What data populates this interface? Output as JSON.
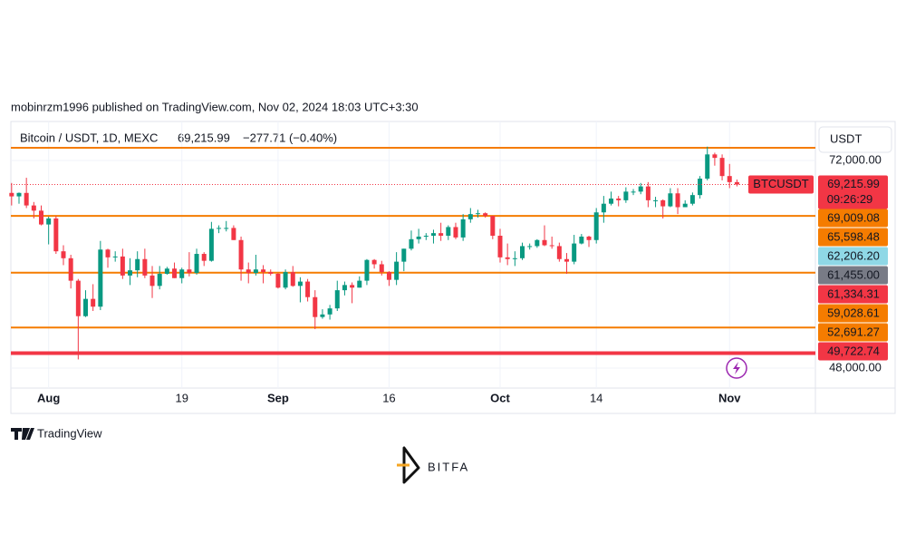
{
  "header": {
    "publisher": "mobinrzm1996 published on TradingView.com, Nov 02, 2024 18:03 UTC+3:30"
  },
  "chart_data": {
    "type": "candlestick",
    "title": "Bitcoin / USDT, 1D, MEXC",
    "last_price": {
      "value": 69215.99,
      "label": "69,215.99"
    },
    "change": "−277.71 (−0.40%)",
    "currency": "USDT",
    "symbol": "BTCUSDT",
    "countdown": "09:26:29",
    "up_color": "#089981",
    "down_color": "#f23645",
    "xlim": [
      208.9,
      317.6
    ],
    "xticks": [
      {
        "value": 214,
        "label": "Aug"
      },
      {
        "value": 232,
        "label": "19"
      },
      {
        "value": 245,
        "label": "Sep"
      },
      {
        "value": 260,
        "label": "16"
      },
      {
        "value": 275,
        "label": "Oct"
      },
      {
        "value": 288,
        "label": "14"
      },
      {
        "value": 306,
        "label": "Nov"
      }
    ],
    "ylim": [
      45690,
      76507
    ],
    "yticks": [
      {
        "value": 72000,
        "label": "72,000.00"
      },
      {
        "value": 48000,
        "label": "48,000.00"
      }
    ],
    "x": [
      209,
      210,
      211,
      212,
      213,
      214,
      215,
      216,
      217,
      218,
      219,
      220,
      221,
      222,
      223,
      224,
      225,
      226,
      227,
      228,
      229,
      230,
      231,
      232,
      233,
      234,
      235,
      236,
      237,
      238,
      239,
      240,
      241,
      242,
      243,
      244,
      245,
      246,
      247,
      248,
      249,
      250,
      251,
      252,
      253,
      254,
      255,
      256,
      257,
      258,
      259,
      260,
      261,
      262,
      263,
      264,
      265,
      266,
      267,
      268,
      269,
      270,
      271,
      272,
      273,
      274,
      275,
      276,
      277,
      278,
      279,
      280,
      281,
      282,
      283,
      284,
      285,
      286,
      287,
      288,
      289,
      290,
      291,
      292,
      293,
      294,
      295,
      296,
      297,
      298,
      299,
      300,
      301,
      302,
      303,
      304,
      305,
      306,
      307
    ],
    "open": [
      68250,
      67850,
      68250,
      66800,
      66200,
      64600,
      65300,
      61500,
      60700,
      58100,
      54000,
      56000,
      55100,
      61700,
      60800,
      60900,
      58700,
      59300,
      60600,
      58700,
      57500,
      58900,
      59500,
      58400,
      59400,
      59000,
      61200,
      60400,
      64100,
      64200,
      64200,
      62800,
      59400,
      59000,
      59400,
      59100,
      58900,
      57300,
      59100,
      57500,
      58000,
      56200,
      53900,
      54200,
      54900,
      57000,
      57600,
      57300,
      58100,
      60500,
      60000,
      59100,
      58200,
      60300,
      61800,
      62900,
      63200,
      63300,
      63600,
      63300,
      64300,
      63100,
      65200,
      65800,
      65900,
      65600,
      63300,
      60800,
      60600,
      60700,
      62100,
      62100,
      62800,
      62200,
      62100,
      60600,
      60300,
      62400,
      63200,
      62800,
      66000,
      67000,
      67600,
      67400,
      68400,
      68400,
      69000,
      67400,
      67400,
      66700,
      68200,
      66600,
      67000,
      68000,
      69900,
      72700,
      72300,
      70200,
      69500
    ],
    "high": [
      69400,
      68300,
      70000,
      67200,
      66800,
      65500,
      65600,
      62200,
      61100,
      58300,
      57000,
      57700,
      62700,
      61800,
      61500,
      61800,
      60700,
      61500,
      61800,
      59800,
      59800,
      59700,
      60200,
      59600,
      61400,
      61800,
      61400,
      64900,
      64500,
      65000,
      64500,
      63200,
      60200,
      61100,
      59900,
      59400,
      59000,
      59400,
      59800,
      58500,
      58300,
      57000,
      54800,
      55300,
      58100,
      58000,
      57900,
      58600,
      60600,
      60600,
      60400,
      59200,
      61400,
      61800,
      63900,
      64100,
      63600,
      64000,
      64800,
      64500,
      64800,
      65800,
      66500,
      66300,
      66000,
      65600,
      64100,
      62400,
      61500,
      62500,
      62400,
      62900,
      64500,
      63200,
      62500,
      61300,
      63400,
      63500,
      63300,
      66500,
      67900,
      68400,
      67900,
      68900,
      68700,
      69400,
      69500,
      67800,
      67500,
      68800,
      68800,
      67400,
      68300,
      70200,
      73600,
      72900,
      72700,
      71600,
      69800
    ],
    "low": [
      66800,
      67000,
      66500,
      65300,
      64500,
      62300,
      61200,
      59900,
      57200,
      49000,
      53900,
      54600,
      54700,
      59600,
      60300,
      58300,
      57600,
      58500,
      58400,
      56100,
      57100,
      58800,
      58400,
      57800,
      58600,
      58800,
      59800,
      60300,
      63600,
      63800,
      62800,
      58100,
      57800,
      58700,
      57800,
      58700,
      57200,
      57100,
      57400,
      55600,
      55700,
      52500,
      53700,
      53600,
      54600,
      56400,
      55500,
      57300,
      57600,
      59500,
      58700,
      57500,
      57600,
      59200,
      61600,
      62400,
      62800,
      62400,
      62700,
      62800,
      62900,
      62700,
      64800,
      65400,
      65400,
      62900,
      60200,
      59900,
      59800,
      60500,
      61700,
      61900,
      62100,
      61800,
      60300,
      58900,
      60000,
      62300,
      62000,
      62400,
      64800,
      66800,
      66700,
      67100,
      68000,
      68100,
      66600,
      66600,
      65300,
      66600,
      65800,
      66600,
      66800,
      67600,
      69700,
      71400,
      69700,
      68800,
      69000
    ],
    "close": [
      67850,
      68250,
      66800,
      66200,
      64600,
      65300,
      61500,
      60700,
      58100,
      54000,
      56000,
      55100,
      61700,
      60800,
      60900,
      58700,
      59300,
      60600,
      58700,
      57500,
      58900,
      59500,
      58400,
      59400,
      59000,
      61200,
      60400,
      64100,
      64200,
      64200,
      62800,
      59400,
      59000,
      59400,
      59100,
      58900,
      57300,
      59100,
      57500,
      58000,
      56200,
      53900,
      54200,
      54900,
      57000,
      57600,
      57300,
      58100,
      60500,
      60000,
      59100,
      58200,
      60300,
      61800,
      62900,
      63200,
      63300,
      63600,
      63300,
      64300,
      63100,
      65200,
      65800,
      65900,
      65600,
      63300,
      60800,
      60600,
      60700,
      62100,
      62100,
      62800,
      62200,
      62100,
      60600,
      60300,
      62400,
      63200,
      62800,
      66000,
      67000,
      67600,
      67400,
      68400,
      68400,
      69000,
      67400,
      67400,
      66700,
      68200,
      66600,
      67000,
      68000,
      69900,
      72700,
      72300,
      70200,
      69500,
      69215.99
    ],
    "levels": [
      {
        "value": 73470,
        "color": "#f57c00"
      },
      {
        "value": 65598.48,
        "color": "#f57c00"
      },
      {
        "value": 59028.61,
        "color": "#f57c00"
      },
      {
        "value": 52691.27,
        "color": "#f57c00"
      },
      {
        "value": 49722.74,
        "color": "#f23645"
      }
    ],
    "price_labels": [
      {
        "value": 69009.08,
        "label": "69,009.08",
        "color": "#f57c00"
      },
      {
        "value": 65598.48,
        "label": "65,598.48",
        "color": "#f57c00"
      },
      {
        "value": 62206.2,
        "label": "62,206.20",
        "color": "#8fd8e6"
      },
      {
        "value": 61455.0,
        "label": "61,455.00",
        "color": "#787b86"
      },
      {
        "value": 61334.31,
        "label": "61,334.31",
        "color": "#f23645"
      },
      {
        "value": 59028.61,
        "label": "59,028.61",
        "color": "#f57c00"
      },
      {
        "value": 52691.27,
        "label": "52,691.27",
        "color": "#f57c00"
      },
      {
        "value": 49722.74,
        "label": "49,722.74",
        "color": "#f23645"
      }
    ]
  },
  "footer": {
    "brand": "TradingView",
    "logo": "BITFA"
  }
}
